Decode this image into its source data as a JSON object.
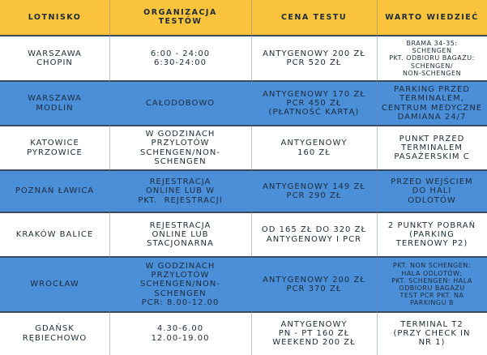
{
  "table": {
    "header": [
      [
        "LOTNISKO"
      ],
      [
        "ORGANIZACJA",
        "TESTÓW"
      ],
      [
        "CENA TESTU"
      ],
      [
        "WARTO WIEDZIEĆ"
      ]
    ],
    "rows": [
      [
        [
          "WARSZAWA",
          "CHOPIN"
        ],
        [
          "6:00 - 24:00",
          "6:30-24:00"
        ],
        [
          "ANTYGENOWY 200 ZŁ",
          "PCR 520 ZŁ"
        ],
        [
          "BRAMA 34-35:",
          "SCHENGEN",
          "PKT. ODBIORU BAGAŻU:",
          "SCHENGEN/",
          "NON-SCHENGEN"
        ]
      ],
      [
        [
          "WARSZAWA",
          "MODLIN"
        ],
        [
          "CAŁODOBOWO"
        ],
        [
          "ANTYGENOWY 170 ZŁ",
          "PCR 450 ZŁ",
          "(PŁATNOŚĆ KARTĄ)"
        ],
        [
          "PARKING PRZED",
          "TERMINALEM,",
          "CENTRUM MEDYCZNE",
          "DAMIANA 24/7"
        ]
      ],
      [
        [
          "KATOWICE",
          "PYRZOWICE"
        ],
        [
          "W GODZINACH",
          "PRZYLOTÓW",
          "SCHENGEN/NON-",
          "SCHENGEN"
        ],
        [
          "ANTYGENOWY",
          "160 ZŁ"
        ],
        [
          "PUNKT PRZED",
          "TERMINALEM",
          "PASAŻERSKIM C"
        ]
      ],
      [
        [
          "POZNAŃ ŁAWICA"
        ],
        [
          "REJESTRACJA",
          "ONLINE LUB W",
          "PKT.  REJESTRACJI"
        ],
        [
          "ANTYGENOWY 149 ZŁ",
          "PCR 290 ZŁ"
        ],
        [
          "PRZED WEJŚCIEM",
          "DO HALI",
          "ODLOTÓW"
        ]
      ],
      [
        [
          "KRAKÓW BALICE"
        ],
        [
          "REJESTRACJA",
          "ONLINE LUB",
          "STACJONARNA"
        ],
        [
          "OD 165 ZŁ DO 320 ZŁ",
          "ANTYGENOWY I PCR"
        ],
        [
          "2 PUNKTY POBRAŃ",
          "(PARKING",
          "TERENOWY P2)"
        ]
      ],
      [
        [
          "WROCŁAW"
        ],
        [
          "W GODZINACH",
          "PRZYLOTÓW",
          "SCHENGEN/NON-",
          "SCHENGEN",
          "PCR: 8.00-12.00"
        ],
        [
          "ANTYGENOWY 200 ZŁ",
          "PCR 370 ZŁ"
        ],
        [
          "PKT. NON SCHENGEN:",
          "HALA ODLOTÓW;",
          "PKT. SCHENGEN: HALA",
          "ODBIORU BAGAŻU",
          "TEST PCR PKT. NA",
          "PARKINGU B"
        ]
      ],
      [
        [
          "GDAŃSK",
          "RĘBIECHOWO"
        ],
        [
          "4.30-6.00",
          "12.00-19.00"
        ],
        [
          "ANTYGENOWY",
          "PN - PT 160 ZŁ",
          "WEEKEND 200 ZŁ"
        ],
        [
          "TERMINAL T2",
          "(PRZY CHECK IN",
          "NR 1)"
        ]
      ]
    ]
  }
}
